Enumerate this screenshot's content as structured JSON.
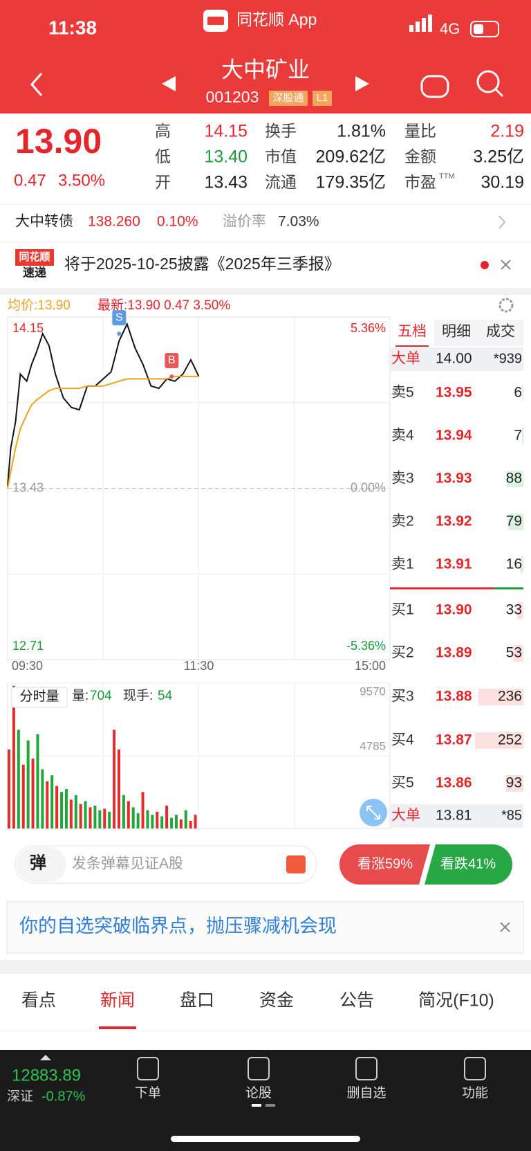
{
  "status": {
    "time": "11:38",
    "app": "同花顺 App",
    "network": "4G"
  },
  "header": {
    "name": "大中矿业",
    "code": "001203",
    "tags": [
      "深股通",
      "L1"
    ]
  },
  "quote": {
    "price": "13.90",
    "change": "0.47",
    "change_pct": "3.50%",
    "stats": [
      {
        "label": "高",
        "value": "14.15"
      },
      {
        "label": "换手",
        "value": "1.81%"
      },
      {
        "label": "量比",
        "value": "2.19"
      },
      {
        "label": "低",
        "value": "13.40"
      },
      {
        "label": "市值",
        "value": "209.62亿"
      },
      {
        "label": "金额",
        "value": "3.25亿"
      },
      {
        "label": "开",
        "value": "13.43"
      },
      {
        "label": "流通",
        "value": "179.35亿"
      },
      {
        "label": "市盈",
        "sup": "TTM",
        "value": "30.19"
      }
    ]
  },
  "bond": {
    "name": "大中转债",
    "price": "138.260",
    "pct": "0.10%",
    "premium_label": "溢价率",
    "premium": "7.03%"
  },
  "notice": {
    "logo": [
      "同花顺",
      "速递"
    ],
    "text": "将于2025-10-25披露《2025年三季报》"
  },
  "chart_header": {
    "avg": "均价:13.90",
    "latest": "最新:13.90  0.47  3.50%"
  },
  "chart_data": [
    {
      "type": "line",
      "x": [
        0,
        2,
        5,
        8,
        12,
        15,
        18,
        22,
        26,
        30,
        35,
        40,
        45,
        50,
        55,
        60,
        65,
        70,
        75,
        80,
        85,
        90,
        95,
        100,
        105,
        110,
        115,
        120
      ],
      "xlim": [
        0,
        240
      ],
      "xticks": [
        {
          "value": 0,
          "label": "09:30"
        },
        {
          "value": 120,
          "label": "11:30"
        },
        {
          "value": 240,
          "label": "15:00"
        }
      ],
      "ylim": [
        12.71,
        14.15
      ],
      "yticks": [
        14.15,
        13.43,
        12.71
      ],
      "y2lim": [
        -5.36,
        5.36
      ],
      "y2ticks": [
        {
          "value": 5.36,
          "label": "5.36%"
        },
        {
          "value": 0,
          "label": "0.00%"
        },
        {
          "value": -5.36,
          "label": "-5.36%"
        }
      ],
      "series": [
        {
          "color": "#111111",
          "values": [
            13.44,
            13.6,
            13.71,
            13.91,
            13.88,
            13.95,
            14.0,
            14.08,
            14.03,
            13.91,
            13.81,
            13.77,
            13.76,
            13.86,
            13.86,
            13.89,
            13.92,
            14.05,
            14.12,
            14.02,
            13.95,
            13.86,
            13.85,
            13.89,
            13.88,
            13.91,
            13.97,
            13.9
          ]
        },
        {
          "color": "#f0a020",
          "values": [
            13.43,
            13.5,
            13.6,
            13.68,
            13.74,
            13.78,
            13.8,
            13.82,
            13.84,
            13.85,
            13.85,
            13.85,
            13.85,
            13.86,
            13.86,
            13.86,
            13.87,
            13.88,
            13.89,
            13.89,
            13.89,
            13.89,
            13.89,
            13.89,
            13.9,
            13.9,
            13.9,
            13.9
          ]
        }
      ],
      "markers": [
        {
          "label": "S",
          "x": 70,
          "y": 14.08,
          "color": "#5b9be6"
        },
        {
          "label": "B",
          "x": 103,
          "y": 13.9,
          "color": "#e95757"
        }
      ],
      "grid": true
    },
    {
      "type": "bar",
      "title": "分时量",
      "volume_label": "量:",
      "volume": "704",
      "hand_label": "现手:",
      "hand": "54",
      "x": [
        0,
        3,
        6,
        9,
        12,
        15,
        18,
        21,
        24,
        27,
        30,
        33,
        36,
        39,
        42,
        45,
        48,
        51,
        54,
        57,
        60,
        63,
        66,
        69,
        72,
        75,
        78,
        81,
        84,
        87,
        90,
        93,
        96,
        99,
        102,
        105,
        108,
        111,
        114,
        117
      ],
      "values": [
        5200,
        9400,
        6500,
        4200,
        5800,
        4600,
        6200,
        3900,
        3100,
        3500,
        2800,
        2400,
        2600,
        1900,
        2200,
        1600,
        1800,
        1400,
        1500,
        1200,
        1300,
        1100,
        6500,
        5200,
        2200,
        1800,
        1400,
        1000,
        2400,
        1200,
        900,
        1100,
        800,
        1500,
        700,
        900,
        600,
        1200,
        500,
        900
      ],
      "bar_colors": [
        "#e62b2b",
        "#e62b2b",
        "#1fa83a",
        "#e62b2b",
        "#1fa83a",
        "#e62b2b",
        "#1fa83a",
        "#1fa83a",
        "#e62b2b",
        "#1fa83a",
        "#e62b2b",
        "#1fa83a",
        "#1fa83a",
        "#e62b2b",
        "#1fa83a",
        "#e62b2b",
        "#1fa83a",
        "#e62b2b",
        "#1fa83a",
        "#1fa83a",
        "#e62b2b",
        "#1fa83a",
        "#e62b2b",
        "#e62b2b",
        "#1fa83a",
        "#e62b2b",
        "#1fa83a",
        "#1fa83a",
        "#e62b2b",
        "#1fa83a",
        "#1fa83a",
        "#e62b2b",
        "#1fa83a",
        "#e62b2b",
        "#1fa83a",
        "#1fa83a",
        "#e62b2b",
        "#1fa83a",
        "#e62b2b",
        "#e62b2b"
      ],
      "xlim": [
        0,
        240
      ],
      "ylim": [
        0,
        9570
      ],
      "yticks": [
        9570,
        4785
      ]
    }
  ],
  "orderbook": {
    "tabs": [
      "五档",
      "明细",
      "成交"
    ],
    "big_sell": {
      "label": "大单",
      "price": "14.00",
      "volume": "*939"
    },
    "asks": [
      {
        "label": "卖5",
        "price": "13.95",
        "volume": 6
      },
      {
        "label": "卖4",
        "price": "13.94",
        "volume": 7
      },
      {
        "label": "卖3",
        "price": "13.93",
        "volume": 88
      },
      {
        "label": "卖2",
        "price": "13.92",
        "volume": 79
      },
      {
        "label": "卖1",
        "price": "13.91",
        "volume": 16
      }
    ],
    "bids": [
      {
        "label": "买1",
        "price": "13.90",
        "volume": 33
      },
      {
        "label": "买2",
        "price": "13.89",
        "volume": 53
      },
      {
        "label": "买3",
        "price": "13.88",
        "volume": 236
      },
      {
        "label": "买4",
        "price": "13.87",
        "volume": 252
      },
      {
        "label": "买5",
        "price": "13.86",
        "volume": 93
      }
    ],
    "big_buy": {
      "label": "大单",
      "price": "13.81",
      "volume": "*85"
    }
  },
  "danmu": {
    "icon": "弹",
    "placeholder": "发条弹幕见证A股",
    "bull": "看涨59%",
    "bear": "看跌41%"
  },
  "banner": {
    "text": "你的自选突破临界点，抛压骤减机会现"
  },
  "tabs": [
    "看点",
    "新闻",
    "盘口",
    "资金",
    "公告",
    "简况(F10)"
  ],
  "footer": {
    "index_value": "12883.89",
    "index_name": "深证",
    "index_pct": "-0.87%",
    "actions": [
      "下单",
      "论股",
      "删自选",
      "功能"
    ]
  }
}
